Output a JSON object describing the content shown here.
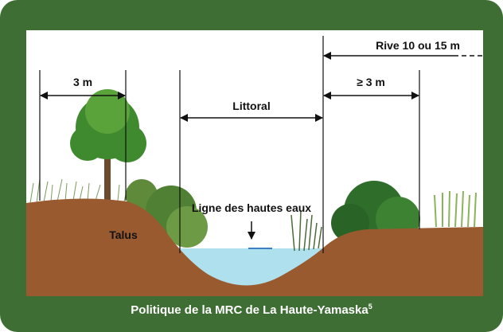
{
  "labels": {
    "left_strip": "3 m",
    "littoral": "Littoral",
    "rive": "Rive 10 ou 15 m",
    "buffer": "≥ 3 m",
    "high_water": "Ligne des hautes eaux",
    "slope": "Talus"
  },
  "caption": {
    "text": "Politique de la MRC de La Haute-Yamaska",
    "note": "5"
  }
}
